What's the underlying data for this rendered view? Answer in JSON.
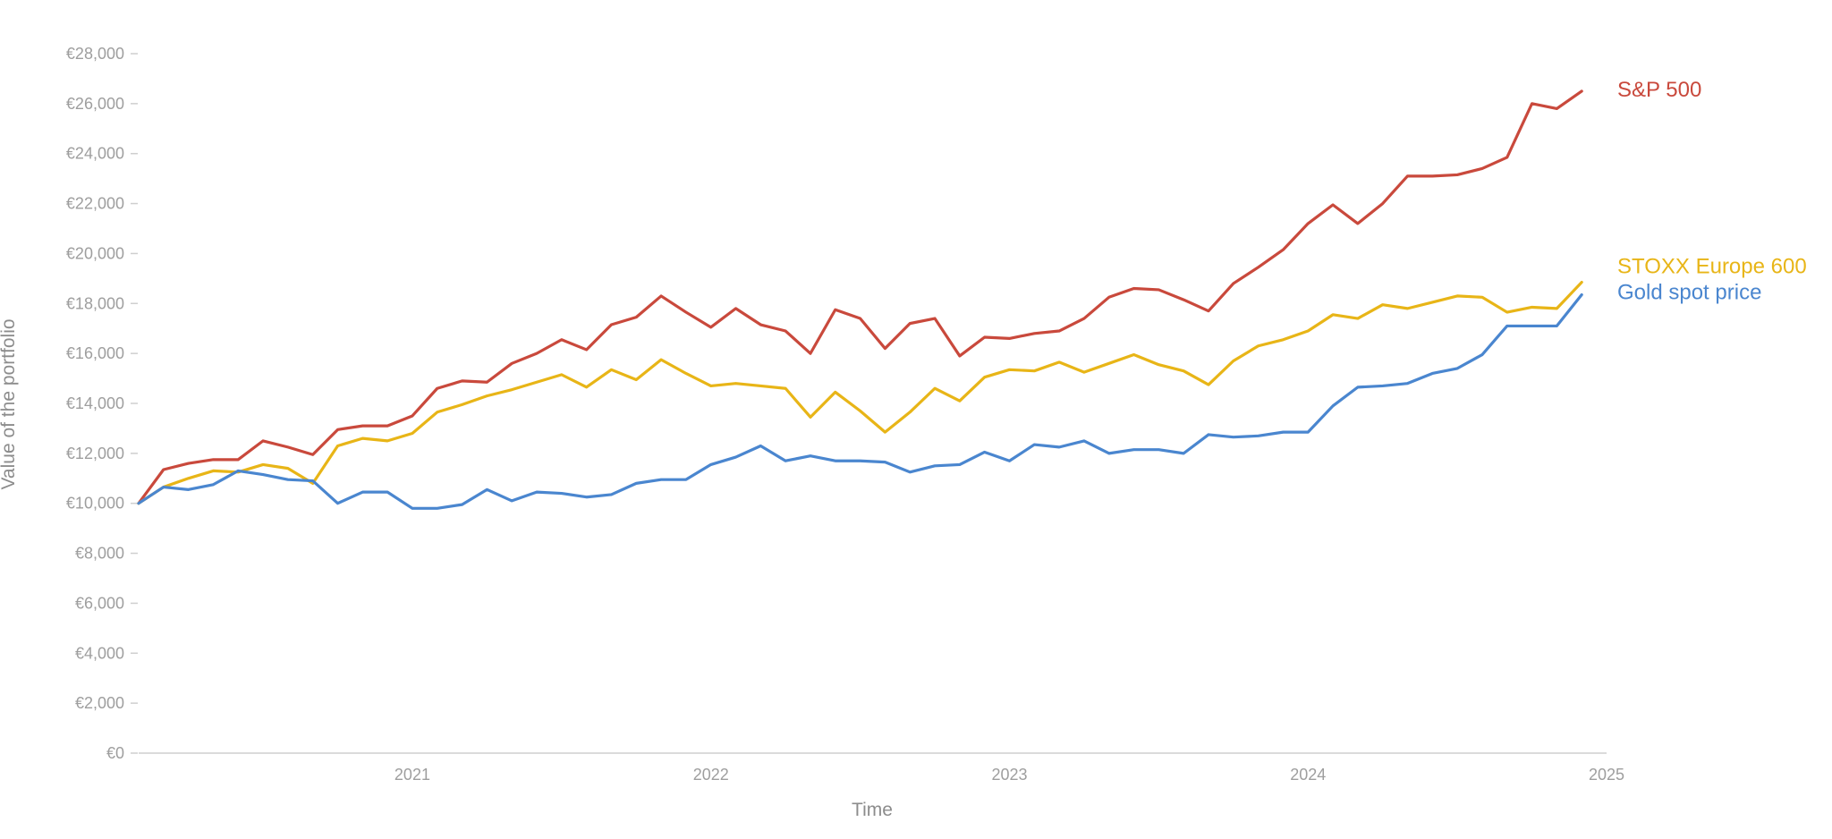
{
  "chart_data": {
    "type": "line",
    "title": "",
    "xlabel": "Time",
    "ylabel": "Value of the portfolio",
    "x_start": "2020-02",
    "x_end": "2025-01",
    "x_ticks": [
      "2021",
      "2022",
      "2023",
      "2024",
      "2025"
    ],
    "ylim": [
      0,
      28000
    ],
    "y_ticks": [
      "€0",
      "€2,000",
      "€4,000",
      "€6,000",
      "€8,000",
      "€10,000",
      "€12,000",
      "€14,000",
      "€16,000",
      "€18,000",
      "€20,000",
      "€22,000",
      "€24,000",
      "€26,000",
      "€28,000"
    ],
    "grid": false,
    "legend": "labels at line ends",
    "series": [
      {
        "name": "S&P 500",
        "color": "#c9493c",
        "values": [
          10000,
          11350,
          11600,
          11750,
          11750,
          12500,
          12250,
          11950,
          12950,
          13100,
          13100,
          13500,
          14600,
          14900,
          14850,
          15600,
          16000,
          16550,
          16150,
          17150,
          17450,
          18300,
          17650,
          17050,
          17800,
          17150,
          16900,
          16000,
          17750,
          17400,
          16200,
          17200,
          17400,
          15900,
          16650,
          16600,
          16800,
          16900,
          17400,
          18250,
          18600,
          18550,
          18150,
          17700,
          18800,
          19450,
          20150,
          21200,
          21950,
          21200,
          22000,
          23100,
          23100,
          23150,
          23400,
          23850,
          26000,
          25800,
          26500
        ]
      },
      {
        "name": "STOXX Europe 600",
        "color": "#e8b517",
        "values": [
          10000,
          10650,
          11000,
          11300,
          11250,
          11550,
          11400,
          10800,
          12300,
          12600,
          12500,
          12800,
          13650,
          13950,
          14300,
          14550,
          14850,
          15150,
          14650,
          15350,
          14950,
          15750,
          15200,
          14700,
          14800,
          14700,
          14600,
          13450,
          14450,
          13700,
          12850,
          13650,
          14600,
          14100,
          15050,
          15350,
          15300,
          15650,
          15250,
          15600,
          15950,
          15550,
          15300,
          14750,
          15700,
          16300,
          16550,
          16900,
          17550,
          17400,
          17950,
          17800,
          18050,
          18300,
          18250,
          17650,
          17850,
          17800,
          18850
        ]
      },
      {
        "name": "Gold spot price",
        "color": "#4a86cf",
        "values": [
          10000,
          10650,
          10550,
          10750,
          11300,
          11150,
          10950,
          10900,
          10000,
          10450,
          10450,
          9800,
          9800,
          9950,
          10550,
          10100,
          10450,
          10400,
          10250,
          10350,
          10800,
          10950,
          10950,
          11550,
          11850,
          12300,
          11700,
          11900,
          11700,
          11700,
          11650,
          11250,
          11500,
          11550,
          12050,
          11700,
          12350,
          12250,
          12500,
          12000,
          12150,
          12150,
          12000,
          12750,
          12650,
          12700,
          12850,
          12850,
          13900,
          14650,
          14700,
          14800,
          15200,
          15400,
          15950,
          17100,
          17100,
          17100,
          18350
        ]
      }
    ]
  }
}
